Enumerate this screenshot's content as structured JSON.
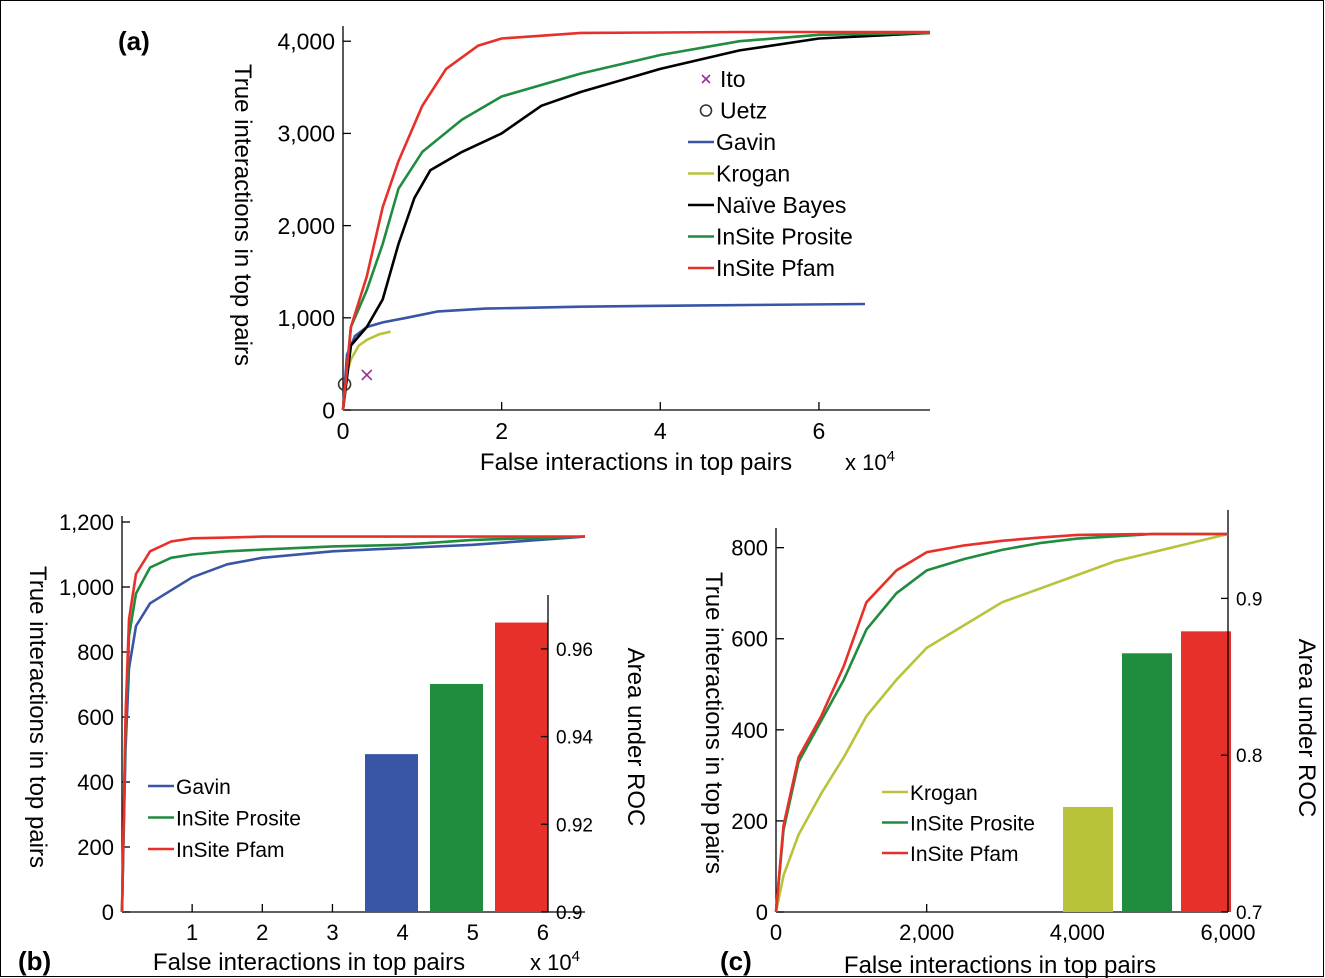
{
  "chart_data": [
    {
      "panel": "(a)",
      "type": "line",
      "xlabel": "False interactions in top pairs",
      "x_multiplier": "x 10",
      "x_multiplier_exp": "4",
      "ylabel": "True interactions in top pairs",
      "xlim": [
        0,
        7.4
      ],
      "ylim": [
        0,
        4100
      ],
      "x_ticks": [
        0,
        2,
        4,
        6
      ],
      "x_tick_labels": [
        "0",
        "2",
        "4",
        "6"
      ],
      "y_ticks": [
        0,
        1000,
        2000,
        3000,
        4000
      ],
      "y_tick_labels": [
        "0",
        "1,000",
        "2,000",
        "3,000",
        "4,000"
      ],
      "legend_position": "center-right",
      "series": [
        {
          "name": "Ito",
          "marker": "x",
          "color": "#9b2f9b",
          "x": [
            0.3
          ],
          "y": [
            380
          ]
        },
        {
          "name": "Uetz",
          "marker": "o",
          "color": "#333333",
          "x": [
            0.02
          ],
          "y": [
            280
          ]
        },
        {
          "name": "Gavin",
          "color": "#3a55a6",
          "x": [
            0,
            0.05,
            0.15,
            0.3,
            0.5,
            0.8,
            1.2,
            1.8,
            3,
            4.5,
            6.58
          ],
          "y": [
            0,
            600,
            800,
            900,
            950,
            1000,
            1070,
            1100,
            1120,
            1135,
            1150
          ]
        },
        {
          "name": "Krogan",
          "color": "#b9c33a",
          "x": [
            0,
            0.05,
            0.1,
            0.2,
            0.3,
            0.45,
            0.6
          ],
          "y": [
            0,
            400,
            550,
            700,
            760,
            820,
            850
          ]
        },
        {
          "name": "Naïve Bayes",
          "color": "#000000",
          "x": [
            0,
            0.1,
            0.3,
            0.5,
            0.7,
            0.9,
            1.1,
            1.5,
            2,
            2.5,
            3,
            4,
            5,
            6,
            7.4
          ],
          "y": [
            0,
            700,
            900,
            1200,
            1800,
            2300,
            2600,
            2800,
            3000,
            3300,
            3450,
            3700,
            3900,
            4030,
            4090
          ]
        },
        {
          "name": "InSite Prosite",
          "color": "#1f8c3f",
          "x": [
            0,
            0.1,
            0.3,
            0.5,
            0.7,
            1,
            1.5,
            2,
            3,
            4,
            5,
            6,
            7.4
          ],
          "y": [
            0,
            900,
            1300,
            1800,
            2400,
            2800,
            3150,
            3400,
            3650,
            3850,
            4000,
            4070,
            4090
          ]
        },
        {
          "name": "InSite Pfam",
          "color": "#e8302a",
          "x": [
            0,
            0.1,
            0.3,
            0.5,
            0.7,
            1,
            1.3,
            1.7,
            2,
            3,
            4,
            5,
            7.4
          ],
          "y": [
            0,
            900,
            1450,
            2200,
            2700,
            3300,
            3700,
            3950,
            4030,
            4090,
            4095,
            4100,
            4100
          ]
        }
      ]
    },
    {
      "panel": "(b)",
      "type": "line",
      "xlabel": "False interactions in top pairs",
      "x_multiplier": "x 10",
      "x_multiplier_exp": "4",
      "ylabel": "True interactions in top pairs",
      "xlim": [
        0,
        6.6
      ],
      "ylim": [
        0,
        1200
      ],
      "x_ticks": [
        1,
        2,
        3,
        4,
        5,
        6
      ],
      "x_tick_labels": [
        "1",
        "2",
        "3",
        "4",
        "5",
        "6"
      ],
      "y_ticks": [
        0,
        200,
        400,
        600,
        800,
        1000,
        1200
      ],
      "y_tick_labels": [
        "0",
        "200",
        "400",
        "600",
        "800",
        "1,000",
        "1,200"
      ],
      "legend_position": "bottom-left",
      "series": [
        {
          "name": "Gavin",
          "color": "#3a55a6",
          "x": [
            0,
            0.05,
            0.1,
            0.2,
            0.4,
            0.7,
            1,
            1.5,
            2,
            3,
            4,
            5,
            6.6
          ],
          "y": [
            0,
            500,
            750,
            880,
            950,
            990,
            1030,
            1070,
            1090,
            1110,
            1120,
            1130,
            1155
          ]
        },
        {
          "name": "InSite Prosite",
          "color": "#1f8c3f",
          "x": [
            0,
            0.05,
            0.1,
            0.2,
            0.4,
            0.7,
            1,
            1.5,
            2,
            3,
            4,
            5,
            6.6
          ],
          "y": [
            0,
            550,
            850,
            980,
            1060,
            1090,
            1100,
            1110,
            1115,
            1125,
            1130,
            1145,
            1155
          ]
        },
        {
          "name": "InSite Pfam",
          "color": "#e8302a",
          "x": [
            0,
            0.05,
            0.1,
            0.2,
            0.4,
            0.7,
            1,
            1.5,
            2,
            3,
            4,
            5,
            6.6
          ],
          "y": [
            0,
            600,
            900,
            1040,
            1110,
            1140,
            1150,
            1152,
            1155,
            1155,
            1155,
            1155,
            1155
          ]
        }
      ],
      "inset_bar": {
        "ylabel": "Area under ROC",
        "ylim": [
          0.9,
          0.97
        ],
        "y_ticks": [
          0.9,
          0.92,
          0.94,
          0.96
        ],
        "y_tick_labels": [
          "0.9",
          "0.92",
          "0.94",
          "0.96"
        ],
        "bars": [
          {
            "series": "Gavin",
            "value": 0.936,
            "color": "#3a55a6"
          },
          {
            "series": "InSite Prosite",
            "value": 0.952,
            "color": "#1f8c3f"
          },
          {
            "series": "InSite Pfam",
            "value": 0.966,
            "color": "#e8302a"
          }
        ]
      }
    },
    {
      "panel": "(c)",
      "type": "line",
      "xlabel": "False interactions in top pairs",
      "ylabel": "True interactions in top pairs",
      "xlim": [
        0,
        6000
      ],
      "ylim": [
        0,
        830
      ],
      "x_ticks": [
        0,
        2000,
        4000,
        6000
      ],
      "x_tick_labels": [
        "0",
        "2,000",
        "4,000",
        "6,000"
      ],
      "y_ticks": [
        0,
        200,
        400,
        600,
        800
      ],
      "y_tick_labels": [
        "0",
        "200",
        "400",
        "600",
        "800"
      ],
      "legend_position": "bottom-center",
      "series": [
        {
          "name": "Krogan",
          "color": "#b9c33a",
          "x": [
            0,
            100,
            300,
            600,
            900,
            1200,
            1600,
            2000,
            2500,
            3000,
            3500,
            4000,
            4500,
            5000,
            5500,
            6000
          ],
          "y": [
            0,
            80,
            170,
            260,
            340,
            430,
            510,
            580,
            630,
            680,
            710,
            740,
            770,
            790,
            810,
            830
          ]
        },
        {
          "name": "InSite Prosite",
          "color": "#1f8c3f",
          "x": [
            0,
            100,
            300,
            600,
            900,
            1200,
            1600,
            2000,
            2500,
            3000,
            3500,
            4000,
            5000,
            6000
          ],
          "y": [
            0,
            180,
            330,
            420,
            510,
            620,
            700,
            750,
            775,
            795,
            810,
            820,
            830,
            830
          ]
        },
        {
          "name": "InSite Pfam",
          "color": "#e8302a",
          "x": [
            0,
            100,
            300,
            600,
            900,
            1200,
            1600,
            2000,
            2500,
            3000,
            3500,
            4000,
            5000,
            6000
          ],
          "y": [
            0,
            190,
            340,
            430,
            540,
            680,
            750,
            790,
            805,
            815,
            822,
            828,
            830,
            830
          ]
        }
      ],
      "inset_bar": {
        "ylabel": "Area under ROC",
        "ylim": [
          0.7,
          0.95
        ],
        "y_ticks": [
          0.7,
          0.8,
          0.9
        ],
        "y_tick_labels": [
          "0.7",
          "0.8",
          "0.9"
        ],
        "bars": [
          {
            "series": "Krogan",
            "value": 0.767,
            "color": "#b9c33a"
          },
          {
            "series": "InSite Prosite",
            "value": 0.865,
            "color": "#1f8c3f"
          },
          {
            "series": "InSite Pfam",
            "value": 0.879,
            "color": "#e8302a"
          }
        ]
      }
    }
  ]
}
